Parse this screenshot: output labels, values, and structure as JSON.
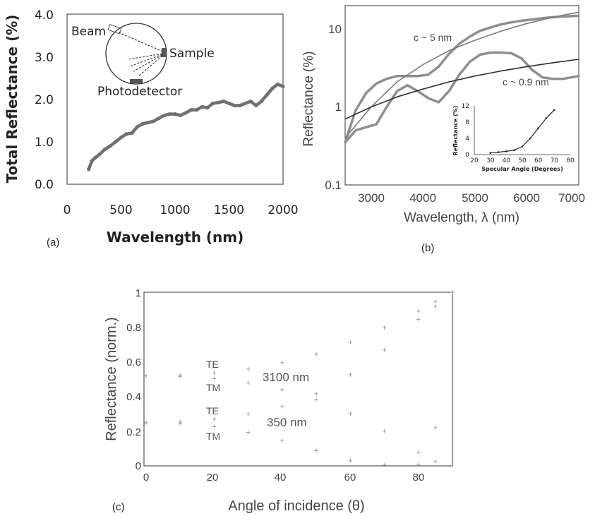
{
  "colors": {
    "data_gray": "#707070",
    "fit_dark": "#2f2f2f",
    "ink": "#222222",
    "marker_gray": "#8a8a8a"
  },
  "chart_data": [
    {
      "panel": "(a)",
      "type": "line",
      "xlabel": "Wavelength (nm)",
      "ylabel": "Total Reflectance (%)",
      "xlim": [
        0,
        2000
      ],
      "ylim": [
        0,
        4.0
      ],
      "x_ticks": [
        "0",
        "500",
        "1000",
        "1500",
        "2000"
      ],
      "y_ticks": [
        "0.0",
        "1.0",
        "2.0",
        "3.0",
        "4.0"
      ],
      "grid": false,
      "series": [
        {
          "x": [
            200,
            230,
            260,
            300,
            350,
            400,
            450,
            500,
            550,
            600,
            650,
            700,
            750,
            800,
            850,
            900,
            950,
            1000,
            1050,
            1100,
            1150,
            1200,
            1250,
            1300,
            1350,
            1400,
            1450,
            1500,
            1550,
            1600,
            1650,
            1700,
            1750,
            1800,
            1850,
            1900,
            1950,
            2000
          ],
          "values": [
            0.35,
            0.55,
            0.62,
            0.7,
            0.82,
            0.9,
            1.0,
            1.1,
            1.18,
            1.2,
            1.35,
            1.42,
            1.45,
            1.48,
            1.55,
            1.62,
            1.65,
            1.65,
            1.62,
            1.68,
            1.75,
            1.75,
            1.82,
            1.8,
            1.9,
            1.92,
            1.95,
            1.9,
            1.85,
            1.85,
            1.9,
            1.95,
            1.85,
            1.95,
            2.1,
            2.25,
            2.35,
            2.3
          ]
        }
      ],
      "annotations": [
        "Beam",
        "Sample",
        "Photodetector"
      ]
    },
    {
      "panel": "(b)",
      "type": "line",
      "xlabel": "Wavelength, λ (nm)",
      "ylabel": "Reflectance (%)",
      "xlim": [
        2500,
        7000
      ],
      "ylim": [
        0.1,
        20
      ],
      "y_scale": "log",
      "x_ticks": [
        "3000",
        "4000",
        "5000",
        "6000",
        "7000"
      ],
      "y_ticks": [
        "0.1",
        "1",
        "10"
      ],
      "grid": false,
      "series": [
        {
          "x": [
            2500,
            2700,
            2900,
            3100,
            3300,
            3500,
            3700,
            3900,
            4100,
            4300,
            4500,
            4700,
            4900,
            5100,
            5300,
            5500,
            5700,
            5900,
            6100,
            6300,
            6500,
            6700,
            7000
          ],
          "values": [
            0.35,
            0.9,
            1.5,
            2.0,
            2.3,
            2.5,
            2.5,
            2.5,
            2.6,
            3.3,
            4.8,
            6.5,
            8.0,
            9.5,
            10.5,
            11.5,
            12.2,
            12.8,
            13.3,
            13.8,
            14.2,
            14.5,
            14.8
          ]
        },
        {
          "x": [
            2500,
            2700,
            2900,
            3100,
            3300,
            3500,
            3700,
            3900,
            4100,
            4300,
            4500,
            4700,
            4900,
            5100,
            5300,
            5500,
            5700,
            5900,
            6100,
            6300,
            6500,
            6700,
            7000
          ],
          "values": [
            0.35,
            0.5,
            0.55,
            0.6,
            1.0,
            1.6,
            1.9,
            1.6,
            1.3,
            1.15,
            1.6,
            2.6,
            3.8,
            4.7,
            5.0,
            5.0,
            4.9,
            4.2,
            3.0,
            2.4,
            2.3,
            2.3,
            2.5
          ]
        },
        {
          "x": [
            2500,
            3000,
            3500,
            4000,
            4500,
            5000,
            5500,
            6000,
            6500,
            7000
          ],
          "values": [
            0.4,
            1.0,
            2.1,
            3.5,
            5.3,
            7.2,
            9.4,
            11.8,
            14.2,
            16.5
          ]
        },
        {
          "x": [
            2500,
            3000,
            3500,
            4000,
            4500,
            5000,
            5500,
            6000,
            6500,
            7000
          ],
          "values": [
            0.7,
            1.0,
            1.35,
            1.7,
            2.1,
            2.5,
            2.9,
            3.3,
            3.7,
            4.1
          ]
        }
      ],
      "annotations": [
        "c ~ 5 nm",
        "c ~ 0.9 nm"
      ],
      "inset": {
        "type": "line",
        "xlabel": "Specular Angle (Degrees)",
        "ylabel": "Reflectance (%)",
        "xlim": [
          20,
          80
        ],
        "ylim": [
          0,
          12
        ],
        "x_ticks": [
          "20",
          "30",
          "40",
          "50",
          "60",
          "70",
          "80"
        ],
        "y_ticks": [
          "0",
          "4",
          "8",
          "12"
        ],
        "x": [
          30,
          35,
          40,
          45,
          50,
          55,
          60,
          65,
          70
        ],
        "values": [
          0.4,
          0.6,
          0.8,
          1.1,
          2.0,
          4.0,
          6.5,
          9.0,
          11.0
        ]
      }
    },
    {
      "panel": "(c)",
      "type": "scatter",
      "xlabel": "Angle of incidence (θ)",
      "ylabel": "Reflectance (norm.)",
      "xlim": [
        0,
        90
      ],
      "ylim": [
        0,
        1
      ],
      "x_ticks": [
        "0",
        "20",
        "40",
        "60",
        "80"
      ],
      "y_ticks": [
        "0",
        "0.2",
        "0.4",
        "0.6",
        "0.8",
        "1"
      ],
      "grid": false,
      "curve_labels": [
        "TE",
        "TM",
        "TE",
        "TM"
      ],
      "annotations": [
        "3100 nm",
        "350 nm"
      ],
      "series": [
        {
          "x": [
            0,
            10,
            20,
            30,
            40,
            50,
            60,
            70,
            80,
            85,
            90
          ],
          "values": [
            0.516,
            0.52,
            0.533,
            0.556,
            0.591,
            0.641,
            0.71,
            0.794,
            0.89,
            0.944,
            1.0
          ]
        },
        {
          "x": [
            0,
            10,
            20,
            30,
            40,
            50,
            60,
            70,
            80,
            85,
            90
          ],
          "values": [
            0.516,
            0.512,
            0.499,
            0.475,
            0.436,
            0.379,
            0.298,
            0.195,
            0.074,
            0.02,
            1.0
          ]
        },
        {
          "x": [
            0,
            10,
            20,
            30,
            40,
            50,
            60,
            70,
            80,
            85,
            90
          ],
          "values": [
            0.245,
            0.25,
            0.265,
            0.293,
            0.338,
            0.412,
            0.522,
            0.666,
            0.842,
            0.918,
            1.0
          ]
        },
        {
          "x": [
            0,
            10,
            20,
            30,
            40,
            50,
            60,
            70,
            80,
            85,
            90
          ],
          "values": [
            0.245,
            0.24,
            0.222,
            0.19,
            0.142,
            0.083,
            0.024,
            0.0,
            0.002,
            0.217,
            1.0
          ]
        }
      ]
    }
  ]
}
